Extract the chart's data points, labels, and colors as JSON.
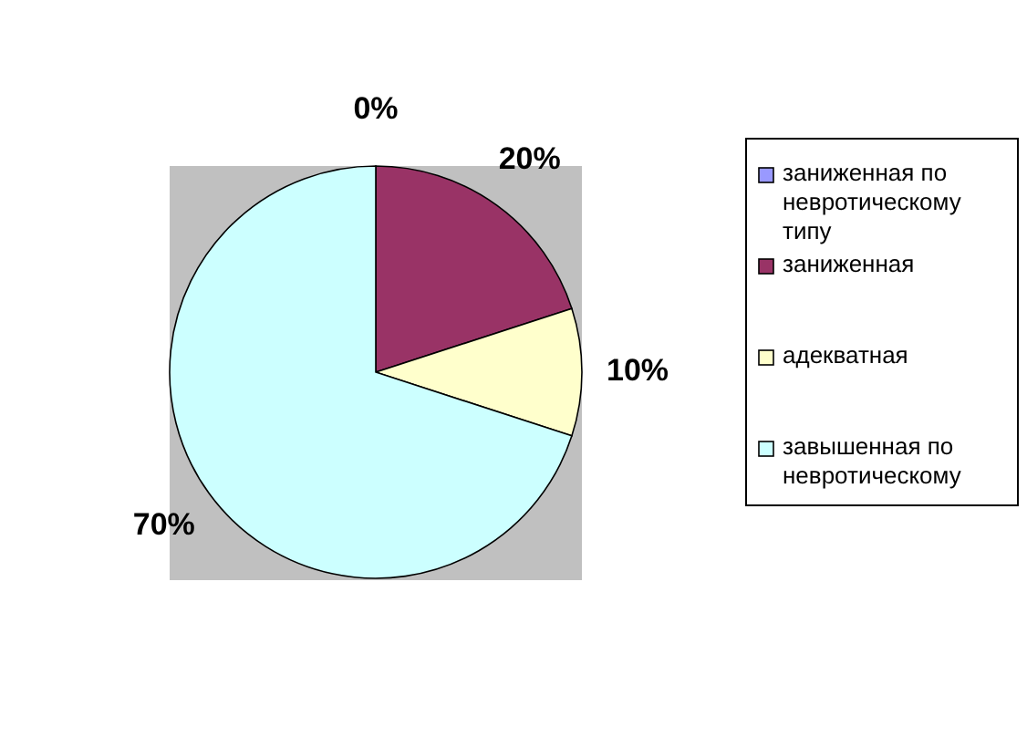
{
  "chart_data": {
    "type": "pie",
    "categories": [
      "заниженная по невротическому типу",
      "заниженная",
      "адекватная",
      "завышенная по невротическому"
    ],
    "values": [
      0,
      20,
      10,
      70
    ],
    "colors": [
      "#9999ff",
      "#993366",
      "#ffffcc",
      "#ccffff"
    ],
    "value_labels": [
      "0%",
      "20%",
      "10%",
      "70%"
    ],
    "legend": "right"
  }
}
